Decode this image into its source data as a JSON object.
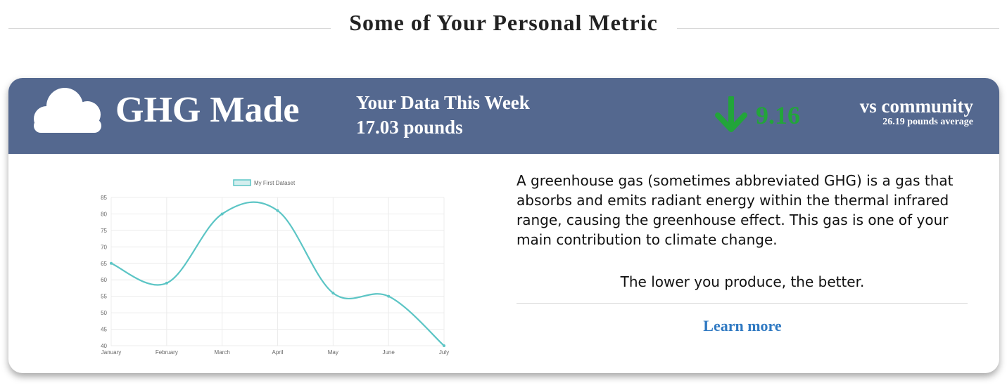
{
  "section": {
    "title": "Some of Your Personal Metric"
  },
  "card": {
    "icon": "cloud-icon",
    "title": "GHG Made",
    "week_label": "Your Data This Week",
    "week_value": "17.03 pounds",
    "diff_icon": "arrow-down-icon",
    "diff_value": "9.16",
    "vs_label": "vs community",
    "community_avg": "26.19 pounds average",
    "description": "A greenhouse gas (sometimes abbreviated GHG) is a gas that absorbs and emits radiant energy within the thermal infrared range, causing the greenhouse effect. This gas is one of your main contribution to climate change.",
    "tagline": "The lower you produce, the better.",
    "learn_more": "Learn more"
  },
  "colors": {
    "header_bg": "#54688f",
    "decrease": "#22a53a",
    "link": "#2f79c2",
    "series_line": "#5cc5c5",
    "series_fill": "#d4eeee"
  },
  "chart_data": {
    "type": "line",
    "categories": [
      "January",
      "February",
      "March",
      "April",
      "May",
      "June",
      "July"
    ],
    "series": [
      {
        "name": "My First Dataset",
        "values": [
          65,
          59,
          80,
          81,
          56,
          55,
          40
        ]
      }
    ],
    "ylim": [
      40,
      85
    ],
    "yticks": [
      40,
      45,
      50,
      55,
      60,
      65,
      70,
      75,
      80,
      85
    ],
    "grid": true,
    "legend": "top"
  }
}
